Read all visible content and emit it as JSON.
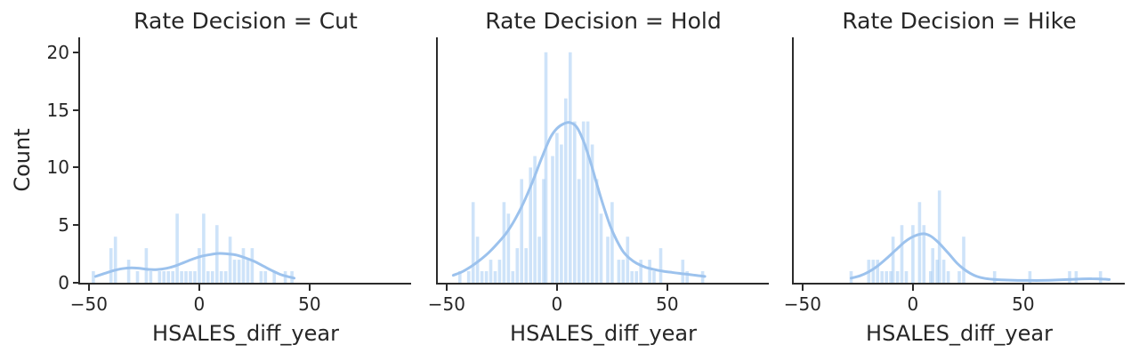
{
  "figure": {
    "ylabel": "Count",
    "xlabel": "HSALES_diff_year",
    "x_tick_values": [
      -50,
      0,
      50
    ],
    "x_tick_labels": [
      "−50",
      "0",
      "50"
    ],
    "y_tick_values": [
      0,
      5,
      10,
      15,
      20
    ],
    "y_tick_labels": [
      "0",
      "5",
      "10",
      "15",
      "20"
    ],
    "xlim": [
      -54,
      96
    ],
    "ylim": [
      0,
      21.3
    ],
    "grid": "off",
    "legend": "none",
    "colors": {
      "bar_fill": "#a1c9f4",
      "bar_opacity": 0.52,
      "kde_line": "#9cc2ed",
      "text": "#262626",
      "spine": "#2b2b2b",
      "background": "#ffffff"
    }
  },
  "chart_data": [
    {
      "type": "bar",
      "subtype": "histogram-with-kde",
      "facet_variable": "Rate Decision",
      "facet_value": "Cut",
      "title": "Rate Decision = Cut",
      "xlabel": "HSALES_diff_year",
      "ylabel": "Count",
      "bin_width": 2,
      "bars": [
        [
          -48,
          1
        ],
        [
          -40,
          3
        ],
        [
          -38,
          4
        ],
        [
          -32,
          2
        ],
        [
          -28,
          1
        ],
        [
          -24,
          3
        ],
        [
          -22,
          1
        ],
        [
          -18,
          1
        ],
        [
          -16,
          1
        ],
        [
          -14,
          1
        ],
        [
          -12,
          1
        ],
        [
          -10,
          6
        ],
        [
          -8,
          1
        ],
        [
          -6,
          1
        ],
        [
          -4,
          1
        ],
        [
          -2,
          1
        ],
        [
          0,
          3
        ],
        [
          2,
          6
        ],
        [
          4,
          1
        ],
        [
          6,
          1
        ],
        [
          8,
          5
        ],
        [
          10,
          1
        ],
        [
          12,
          1
        ],
        [
          14,
          4
        ],
        [
          16,
          2
        ],
        [
          18,
          2
        ],
        [
          20,
          3
        ],
        [
          22,
          2
        ],
        [
          24,
          3
        ],
        [
          28,
          1
        ],
        [
          30,
          1
        ],
        [
          34,
          1
        ],
        [
          39,
          1
        ],
        [
          42,
          1
        ]
      ],
      "kde": [
        [
          -47,
          0.55
        ],
        [
          -43,
          0.8
        ],
        [
          -39,
          1.05
        ],
        [
          -35,
          1.22
        ],
        [
          -31,
          1.3
        ],
        [
          -27,
          1.25
        ],
        [
          -23,
          1.16
        ],
        [
          -19,
          1.15
        ],
        [
          -15,
          1.25
        ],
        [
          -11,
          1.45
        ],
        [
          -7,
          1.75
        ],
        [
          -3,
          2.05
        ],
        [
          1,
          2.3
        ],
        [
          5,
          2.45
        ],
        [
          9,
          2.55
        ],
        [
          13,
          2.5
        ],
        [
          17,
          2.4
        ],
        [
          21,
          2.15
        ],
        [
          25,
          1.85
        ],
        [
          29,
          1.45
        ],
        [
          33,
          1.05
        ],
        [
          37,
          0.7
        ],
        [
          40,
          0.55
        ],
        [
          43,
          0.4
        ]
      ]
    },
    {
      "type": "bar",
      "subtype": "histogram-with-kde",
      "facet_variable": "Rate Decision",
      "facet_value": "Hold",
      "title": "Rate Decision = Hold",
      "xlabel": "HSALES_diff_year",
      "ylabel": "Count",
      "bin_width": 2,
      "bars": [
        [
          -44,
          1
        ],
        [
          -40,
          1
        ],
        [
          -38,
          7
        ],
        [
          -36,
          4
        ],
        [
          -34,
          1
        ],
        [
          -32,
          1
        ],
        [
          -30,
          2
        ],
        [
          -28,
          1
        ],
        [
          -26,
          2
        ],
        [
          -24,
          7
        ],
        [
          -22,
          6
        ],
        [
          -20,
          1
        ],
        [
          -18,
          3
        ],
        [
          -16,
          9
        ],
        [
          -14,
          3
        ],
        [
          -12,
          10
        ],
        [
          -10,
          11
        ],
        [
          -8,
          4
        ],
        [
          -6,
          9
        ],
        [
          -5,
          20
        ],
        [
          -2,
          11
        ],
        [
          0,
          13
        ],
        [
          2,
          12
        ],
        [
          4,
          16
        ],
        [
          6,
          20
        ],
        [
          8,
          14
        ],
        [
          10,
          9
        ],
        [
          12,
          14
        ],
        [
          14,
          14
        ],
        [
          16,
          12
        ],
        [
          18,
          9
        ],
        [
          20,
          6
        ],
        [
          23,
          4
        ],
        [
          25,
          7
        ],
        [
          28,
          2
        ],
        [
          30,
          2
        ],
        [
          32,
          4
        ],
        [
          34,
          1
        ],
        [
          36,
          1
        ],
        [
          38,
          2
        ],
        [
          42,
          2
        ],
        [
          44,
          1
        ],
        [
          47,
          3
        ],
        [
          57,
          2
        ],
        [
          59,
          1
        ],
        [
          66,
          1
        ]
      ],
      "kde": [
        [
          -47,
          0.65
        ],
        [
          -43,
          0.95
        ],
        [
          -39,
          1.4
        ],
        [
          -35,
          1.95
        ],
        [
          -31,
          2.6
        ],
        [
          -27,
          3.4
        ],
        [
          -23,
          4.3
        ],
        [
          -19,
          5.5
        ],
        [
          -15,
          7.0
        ],
        [
          -11,
          8.8
        ],
        [
          -7,
          10.8
        ],
        [
          -3,
          12.6
        ],
        [
          0,
          13.4
        ],
        [
          3,
          13.8
        ],
        [
          6,
          13.9
        ],
        [
          9,
          13.5
        ],
        [
          12,
          12.3
        ],
        [
          15,
          10.6
        ],
        [
          18,
          8.6
        ],
        [
          21,
          6.7
        ],
        [
          24,
          5.0
        ],
        [
          27,
          3.7
        ],
        [
          30,
          2.7
        ],
        [
          33,
          2.1
        ],
        [
          36,
          1.7
        ],
        [
          40,
          1.35
        ],
        [
          44,
          1.15
        ],
        [
          48,
          1.0
        ],
        [
          52,
          0.9
        ],
        [
          56,
          0.8
        ],
        [
          60,
          0.72
        ],
        [
          64,
          0.62
        ],
        [
          67,
          0.55
        ]
      ]
    },
    {
      "type": "bar",
      "subtype": "histogram-with-kde",
      "facet_variable": "Rate Decision",
      "facet_value": "Hike",
      "title": "Rate Decision = Hike",
      "xlabel": "HSALES_diff_year",
      "ylabel": "Count",
      "bin_width": 2,
      "bars": [
        [
          -28,
          1
        ],
        [
          -20,
          2
        ],
        [
          -18,
          2
        ],
        [
          -16,
          2
        ],
        [
          -14,
          1
        ],
        [
          -12,
          1
        ],
        [
          -10,
          1
        ],
        [
          -9,
          4
        ],
        [
          -7,
          1
        ],
        [
          -5,
          5
        ],
        [
          -3,
          1
        ],
        [
          0,
          5
        ],
        [
          3,
          7
        ],
        [
          5,
          5
        ],
        [
          8,
          1
        ],
        [
          9,
          3
        ],
        [
          11,
          2
        ],
        [
          12,
          8
        ],
        [
          14,
          2
        ],
        [
          16,
          1
        ],
        [
          21,
          1
        ],
        [
          23,
          4
        ],
        [
          37,
          1
        ],
        [
          53,
          1
        ],
        [
          71,
          1
        ],
        [
          74,
          1
        ],
        [
          85,
          1
        ]
      ],
      "kde": [
        [
          -28,
          0.4
        ],
        [
          -24,
          0.6
        ],
        [
          -20,
          0.95
        ],
        [
          -16,
          1.45
        ],
        [
          -12,
          2.1
        ],
        [
          -8,
          2.8
        ],
        [
          -4,
          3.5
        ],
        [
          -1,
          3.9
        ],
        [
          2,
          4.15
        ],
        [
          5,
          4.25
        ],
        [
          8,
          4.05
        ],
        [
          11,
          3.6
        ],
        [
          14,
          3.0
        ],
        [
          17,
          2.35
        ],
        [
          20,
          1.7
        ],
        [
          23,
          1.2
        ],
        [
          26,
          0.82
        ],
        [
          29,
          0.55
        ],
        [
          32,
          0.4
        ],
        [
          36,
          0.3
        ],
        [
          40,
          0.25
        ],
        [
          46,
          0.21
        ],
        [
          52,
          0.2
        ],
        [
          58,
          0.2
        ],
        [
          64,
          0.23
        ],
        [
          70,
          0.28
        ],
        [
          76,
          0.33
        ],
        [
          81,
          0.35
        ],
        [
          86,
          0.32
        ],
        [
          89,
          0.28
        ]
      ]
    }
  ]
}
